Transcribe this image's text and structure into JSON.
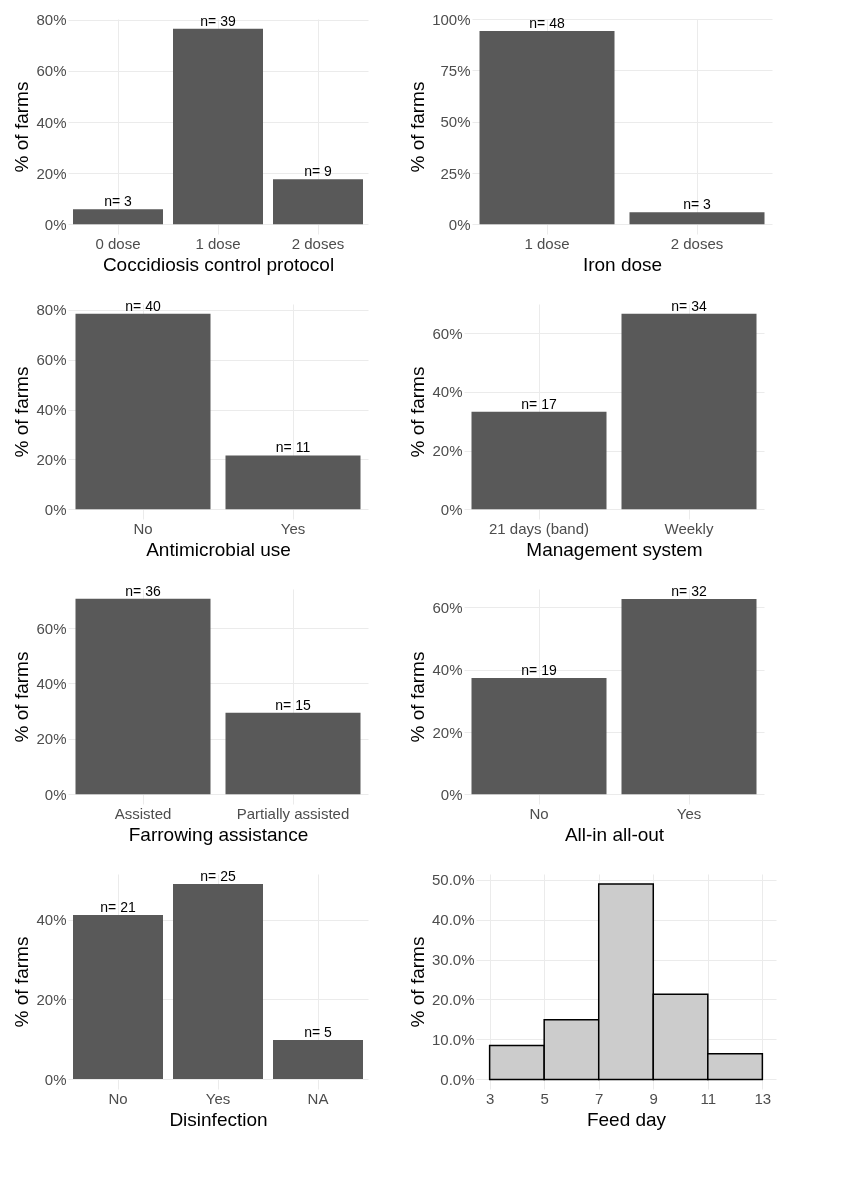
{
  "chart_data": [
    {
      "type": "bar",
      "xlabel": "Coccidiosis control protocol",
      "ylabel": "% of farms",
      "categories": [
        "0 dose",
        "1 dose",
        "2 doses"
      ],
      "values": [
        5.9,
        76.5,
        17.6
      ],
      "annotations": [
        {
          "text": "n= 3",
          "x": "0 dose",
          "y": 5.9
        },
        {
          "text": "n= 39",
          "x": "1 dose",
          "y": 76.5
        },
        {
          "text": "n= 9",
          "x": "2 doses",
          "y": 17.6
        }
      ],
      "color": "#595959",
      "ylim": [
        -3.8,
        80.3
      ],
      "yticks": [
        {
          "value": 0,
          "label": "0%"
        },
        {
          "value": 20,
          "label": "20%"
        },
        {
          "value": 40,
          "label": "40%"
        },
        {
          "value": 60,
          "label": "60%"
        },
        {
          "value": 80,
          "label": "80%"
        }
      ],
      "grid": true
    },
    {
      "type": "bar",
      "xlabel": "Iron dose",
      "ylabel": "% of farms",
      "categories": [
        "1 dose",
        "2 doses"
      ],
      "values": [
        94.1,
        5.9
      ],
      "annotations": [
        {
          "text": "n= 48",
          "x": "1 dose",
          "y": 94.1
        },
        {
          "text": "n= 3",
          "x": "2 doses",
          "y": 5.9
        }
      ],
      "color": "#595959",
      "ylim": [
        -4.7,
        100
      ],
      "yticks": [
        {
          "value": 0,
          "label": "0%"
        },
        {
          "value": 25,
          "label": "25%"
        },
        {
          "value": 50,
          "label": "50%"
        },
        {
          "value": 75,
          "label": "75%"
        },
        {
          "value": 100,
          "label": "100%"
        }
      ],
      "grid": true
    },
    {
      "type": "bar",
      "xlabel": "Antimicrobial use",
      "ylabel": "% of farms",
      "categories": [
        "No",
        "Yes"
      ],
      "values": [
        78.4,
        21.6
      ],
      "annotations": [
        {
          "text": "n= 40",
          "x": "No",
          "y": 78.4
        },
        {
          "text": "n= 11",
          "x": "Yes",
          "y": 21.6
        }
      ],
      "color": "#595959",
      "ylim": [
        -3.9,
        82.3
      ],
      "yticks": [
        {
          "value": 0,
          "label": "0%"
        },
        {
          "value": 20,
          "label": "20%"
        },
        {
          "value": 40,
          "label": "40%"
        },
        {
          "value": 60,
          "label": "60%"
        },
        {
          "value": 80,
          "label": "80%"
        }
      ],
      "grid": true
    },
    {
      "type": "bar",
      "xlabel": "Management system",
      "ylabel": "% of farms",
      "categories": [
        "21 days (band)",
        "Weekly"
      ],
      "values": [
        33.3,
        66.7
      ],
      "annotations": [
        {
          "text": "n= 17",
          "x": "21 days (band)",
          "y": 33.3
        },
        {
          "text": "n= 34",
          "x": "Weekly",
          "y": 66.7
        }
      ],
      "color": "#595959",
      "ylim": [
        -3.3,
        70
      ],
      "yticks": [
        {
          "value": 0,
          "label": "0%"
        },
        {
          "value": 20,
          "label": "20%"
        },
        {
          "value": 40,
          "label": "40%"
        },
        {
          "value": 60,
          "label": "60%"
        }
      ],
      "grid": true
    },
    {
      "type": "bar",
      "xlabel": "Farrowing assistance",
      "ylabel": "% of farms",
      "categories": [
        "Assisted",
        "Partially assisted"
      ],
      "values": [
        70.6,
        29.4
      ],
      "annotations": [
        {
          "text": "n= 36",
          "x": "Assisted",
          "y": 70.6
        },
        {
          "text": "n= 15",
          "x": "Partially assisted",
          "y": 29.4
        }
      ],
      "color": "#595959",
      "ylim": [
        -3.5,
        74.1
      ],
      "yticks": [
        {
          "value": 0,
          "label": "0%"
        },
        {
          "value": 20,
          "label": "20%"
        },
        {
          "value": 40,
          "label": "40%"
        },
        {
          "value": 60,
          "label": "60%"
        }
      ],
      "grid": true
    },
    {
      "type": "bar",
      "xlabel": "All-in all-out",
      "ylabel": "% of farms",
      "categories": [
        "No",
        "Yes"
      ],
      "values": [
        37.3,
        62.7
      ],
      "annotations": [
        {
          "text": "n= 19",
          "x": "No",
          "y": 37.3
        },
        {
          "text": "n= 32",
          "x": "Yes",
          "y": 62.7
        }
      ],
      "color": "#595959",
      "ylim": [
        -3.1,
        65.9
      ],
      "yticks": [
        {
          "value": 0,
          "label": "0%"
        },
        {
          "value": 20,
          "label": "20%"
        },
        {
          "value": 40,
          "label": "40%"
        },
        {
          "value": 60,
          "label": "60%"
        }
      ],
      "grid": true
    },
    {
      "type": "bar",
      "xlabel": "Disinfection",
      "ylabel": "% of farms",
      "categories": [
        "No",
        "Yes",
        "NA"
      ],
      "values": [
        41.2,
        49.0,
        9.8
      ],
      "annotations": [
        {
          "text": "n= 21",
          "x": "No",
          "y": 41.2
        },
        {
          "text": "n= 25",
          "x": "Yes",
          "y": 49.0
        },
        {
          "text": "n= 5",
          "x": "NA",
          "y": 9.8
        }
      ],
      "color": "#595959",
      "ylim": [
        -2.5,
        51.5
      ],
      "yticks": [
        {
          "value": 0,
          "label": "0%"
        },
        {
          "value": 20,
          "label": "20%"
        },
        {
          "value": 40,
          "label": "40%"
        }
      ],
      "grid": true
    },
    {
      "type": "histogram",
      "xlabel": "Feed day",
      "ylabel": "% of farms",
      "bins": [
        3,
        5,
        7,
        9,
        11,
        13
      ],
      "values": [
        8.5,
        14.9,
        48.9,
        21.3,
        6.4
      ],
      "color": "#cccccc",
      "xlim": [
        2.5,
        13.5
      ],
      "xticks": [
        3,
        5,
        7,
        9,
        11,
        13
      ],
      "ylim": [
        -2.4,
        51.4
      ],
      "yticks": [
        {
          "value": 0,
          "label": "0.0%"
        },
        {
          "value": 10,
          "label": "10.0%"
        },
        {
          "value": 20,
          "label": "20.0%"
        },
        {
          "value": 30,
          "label": "30.0%"
        },
        {
          "value": 40,
          "label": "40.0%"
        },
        {
          "value": 50,
          "label": "50.0%"
        }
      ],
      "grid": true
    }
  ]
}
